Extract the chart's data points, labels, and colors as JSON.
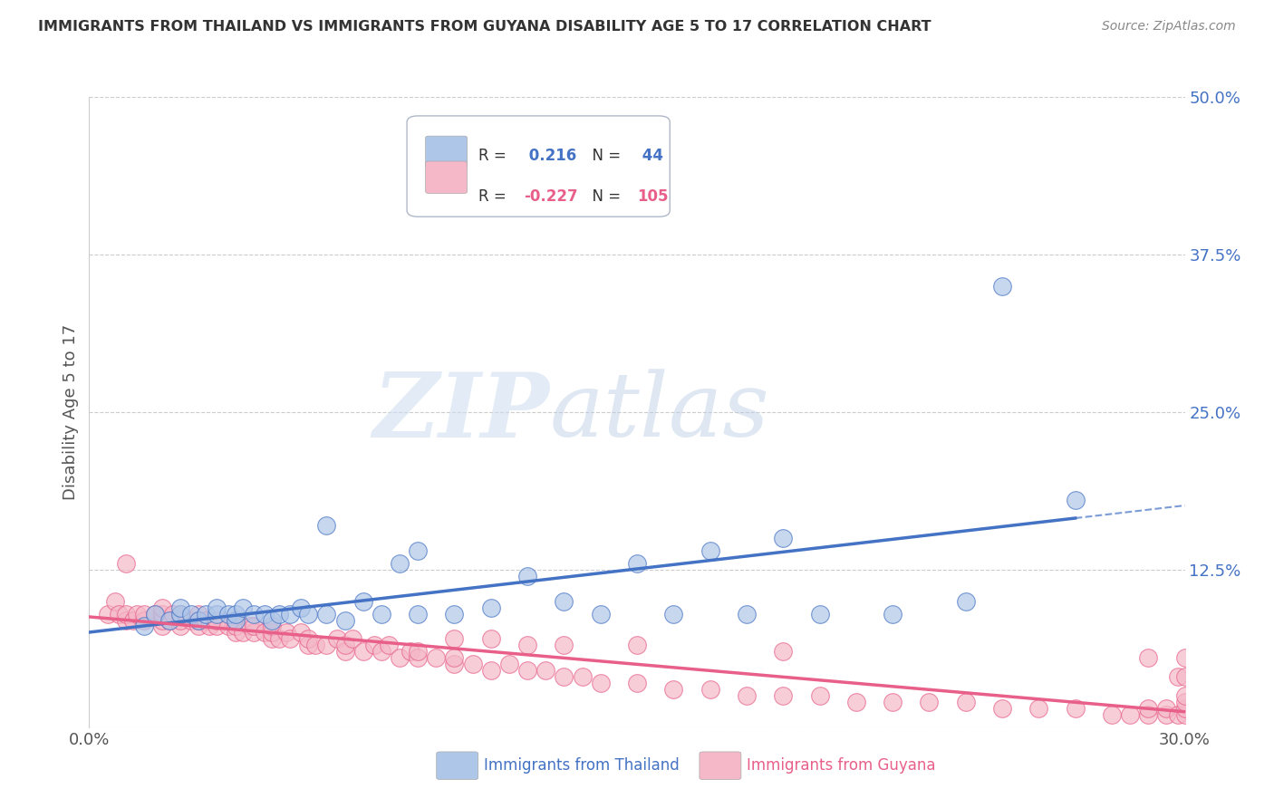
{
  "title": "IMMIGRANTS FROM THAILAND VS IMMIGRANTS FROM GUYANA DISABILITY AGE 5 TO 17 CORRELATION CHART",
  "source": "Source: ZipAtlas.com",
  "xlabel_label": "Immigrants from Thailand",
  "xlabel_label2": "Immigrants from Guyana",
  "ylabel": "Disability Age 5 to 17",
  "xlim": [
    0.0,
    0.3
  ],
  "ylim": [
    0.0,
    0.5
  ],
  "y_ticks": [
    0.0,
    0.125,
    0.25,
    0.375,
    0.5
  ],
  "y_tick_labels": [
    "",
    "12.5%",
    "25.0%",
    "37.5%",
    "50.0%"
  ],
  "thailand_R": 0.216,
  "thailand_N": 44,
  "guyana_R": -0.227,
  "guyana_N": 105,
  "thailand_color": "#aec6e8",
  "guyana_color": "#f4b8c8",
  "thailand_line_color": "#4472C4",
  "guyana_line_color": "#e8608a",
  "watermark_zip": "ZIP",
  "watermark_atlas": "atlas",
  "thailand_scatter_x": [
    0.015,
    0.018,
    0.022,
    0.025,
    0.025,
    0.028,
    0.03,
    0.032,
    0.035,
    0.035,
    0.038,
    0.04,
    0.04,
    0.042,
    0.045,
    0.048,
    0.05,
    0.052,
    0.055,
    0.058,
    0.06,
    0.065,
    0.065,
    0.07,
    0.075,
    0.08,
    0.085,
    0.09,
    0.09,
    0.1,
    0.11,
    0.12,
    0.13,
    0.14,
    0.15,
    0.16,
    0.17,
    0.18,
    0.19,
    0.2,
    0.22,
    0.24,
    0.25,
    0.27
  ],
  "thailand_scatter_y": [
    0.08,
    0.09,
    0.085,
    0.09,
    0.095,
    0.09,
    0.085,
    0.09,
    0.09,
    0.095,
    0.09,
    0.085,
    0.09,
    0.095,
    0.09,
    0.09,
    0.085,
    0.09,
    0.09,
    0.095,
    0.09,
    0.09,
    0.16,
    0.085,
    0.1,
    0.09,
    0.13,
    0.09,
    0.14,
    0.09,
    0.095,
    0.12,
    0.1,
    0.09,
    0.13,
    0.09,
    0.14,
    0.09,
    0.15,
    0.09,
    0.09,
    0.1,
    0.35,
    0.18
  ],
  "guyana_scatter_x": [
    0.005,
    0.007,
    0.008,
    0.01,
    0.01,
    0.01,
    0.012,
    0.013,
    0.015,
    0.015,
    0.018,
    0.02,
    0.02,
    0.02,
    0.02,
    0.022,
    0.023,
    0.025,
    0.025,
    0.025,
    0.028,
    0.03,
    0.03,
    0.03,
    0.032,
    0.033,
    0.035,
    0.035,
    0.038,
    0.04,
    0.04,
    0.04,
    0.042,
    0.044,
    0.045,
    0.045,
    0.048,
    0.05,
    0.05,
    0.05,
    0.052,
    0.054,
    0.055,
    0.058,
    0.06,
    0.06,
    0.062,
    0.065,
    0.068,
    0.07,
    0.07,
    0.072,
    0.075,
    0.078,
    0.08,
    0.082,
    0.085,
    0.088,
    0.09,
    0.09,
    0.095,
    0.1,
    0.1,
    0.1,
    0.105,
    0.11,
    0.11,
    0.115,
    0.12,
    0.12,
    0.125,
    0.13,
    0.13,
    0.135,
    0.14,
    0.15,
    0.15,
    0.16,
    0.17,
    0.18,
    0.19,
    0.19,
    0.2,
    0.21,
    0.22,
    0.23,
    0.24,
    0.25,
    0.26,
    0.27,
    0.28,
    0.285,
    0.29,
    0.29,
    0.29,
    0.295,
    0.295,
    0.298,
    0.298,
    0.3,
    0.3,
    0.3,
    0.3,
    0.3,
    0.3
  ],
  "guyana_scatter_y": [
    0.09,
    0.1,
    0.09,
    0.085,
    0.09,
    0.13,
    0.085,
    0.09,
    0.085,
    0.09,
    0.09,
    0.08,
    0.085,
    0.09,
    0.095,
    0.085,
    0.09,
    0.08,
    0.085,
    0.09,
    0.085,
    0.08,
    0.085,
    0.09,
    0.085,
    0.08,
    0.08,
    0.085,
    0.08,
    0.075,
    0.08,
    0.085,
    0.075,
    0.08,
    0.075,
    0.08,
    0.075,
    0.07,
    0.075,
    0.08,
    0.07,
    0.075,
    0.07,
    0.075,
    0.065,
    0.07,
    0.065,
    0.065,
    0.07,
    0.06,
    0.065,
    0.07,
    0.06,
    0.065,
    0.06,
    0.065,
    0.055,
    0.06,
    0.055,
    0.06,
    0.055,
    0.05,
    0.055,
    0.07,
    0.05,
    0.045,
    0.07,
    0.05,
    0.045,
    0.065,
    0.045,
    0.04,
    0.065,
    0.04,
    0.035,
    0.035,
    0.065,
    0.03,
    0.03,
    0.025,
    0.025,
    0.06,
    0.025,
    0.02,
    0.02,
    0.02,
    0.02,
    0.015,
    0.015,
    0.015,
    0.01,
    0.01,
    0.01,
    0.015,
    0.055,
    0.01,
    0.015,
    0.01,
    0.04,
    0.01,
    0.015,
    0.02,
    0.025,
    0.04,
    0.055
  ]
}
